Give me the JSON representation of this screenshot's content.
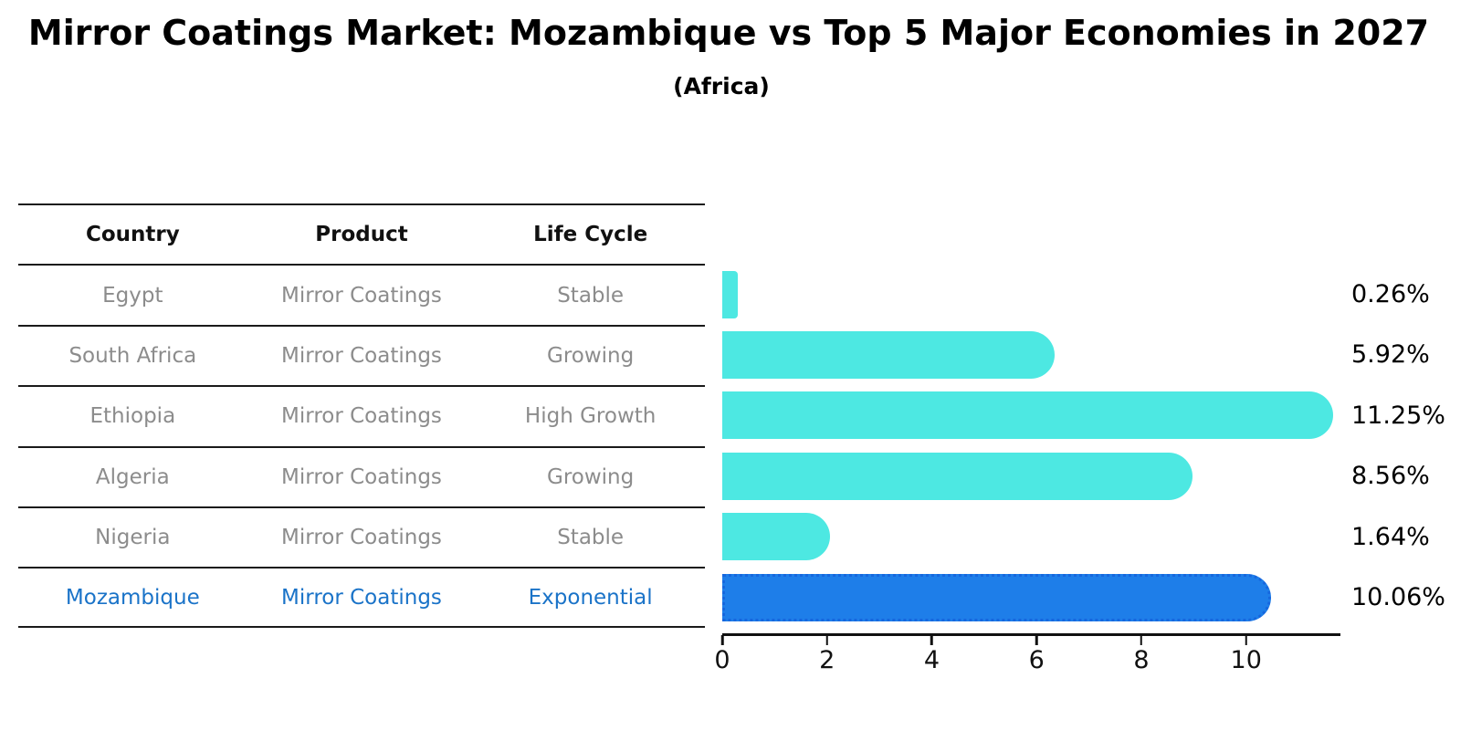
{
  "title": "Mirror Coatings Market: Mozambique vs Top 5 Major Economies in 2027",
  "subtitle": "(Africa)",
  "table": {
    "headers": [
      "Country",
      "Product",
      "Life Cycle"
    ],
    "rows": [
      {
        "country": "Egypt",
        "product": "Mirror Coatings",
        "life_cycle": "Stable",
        "highlight": false
      },
      {
        "country": "South Africa",
        "product": "Mirror Coatings",
        "life_cycle": "Growing",
        "highlight": false
      },
      {
        "country": "Ethiopia",
        "product": "Mirror Coatings",
        "life_cycle": "High Growth",
        "highlight": false
      },
      {
        "country": "Algeria",
        "product": "Mirror Coatings",
        "life_cycle": "Growing",
        "highlight": false
      },
      {
        "country": "Nigeria",
        "product": "Mirror Coatings",
        "life_cycle": "Stable",
        "highlight": false
      },
      {
        "country": "Mozambique",
        "product": "Mirror Coatings",
        "life_cycle": "Exponential",
        "highlight": true
      }
    ]
  },
  "chart_data": {
    "type": "bar",
    "orientation": "horizontal",
    "title": "Mirror Coatings Market: Mozambique vs Top 5 Major Economies in 2027",
    "subtitle": "(Africa)",
    "categories": [
      "Egypt",
      "South Africa",
      "Ethiopia",
      "Algeria",
      "Nigeria",
      "Mozambique"
    ],
    "values": [
      0.26,
      5.92,
      11.25,
      8.56,
      1.64,
      10.06
    ],
    "value_labels": [
      "0.26%",
      "5.92%",
      "11.25%",
      "8.56%",
      "1.64%",
      "10.06%"
    ],
    "x_ticks": [
      0,
      2,
      4,
      6,
      8,
      10
    ],
    "xlim": [
      0,
      11.8
    ],
    "grid": false,
    "legend": false,
    "highlight_category": "Mozambique",
    "colors": {
      "bar_fill": "#4de8e2",
      "highlight_bar_fill": "#1e7ee9",
      "highlight_bar_border": "#1667de",
      "highlight_text": "#1a73c8",
      "table_text_muted": "#8c8c8c",
      "table_header_text": "#111111",
      "axis_text": "#111111",
      "background": "#ffffff"
    }
  }
}
